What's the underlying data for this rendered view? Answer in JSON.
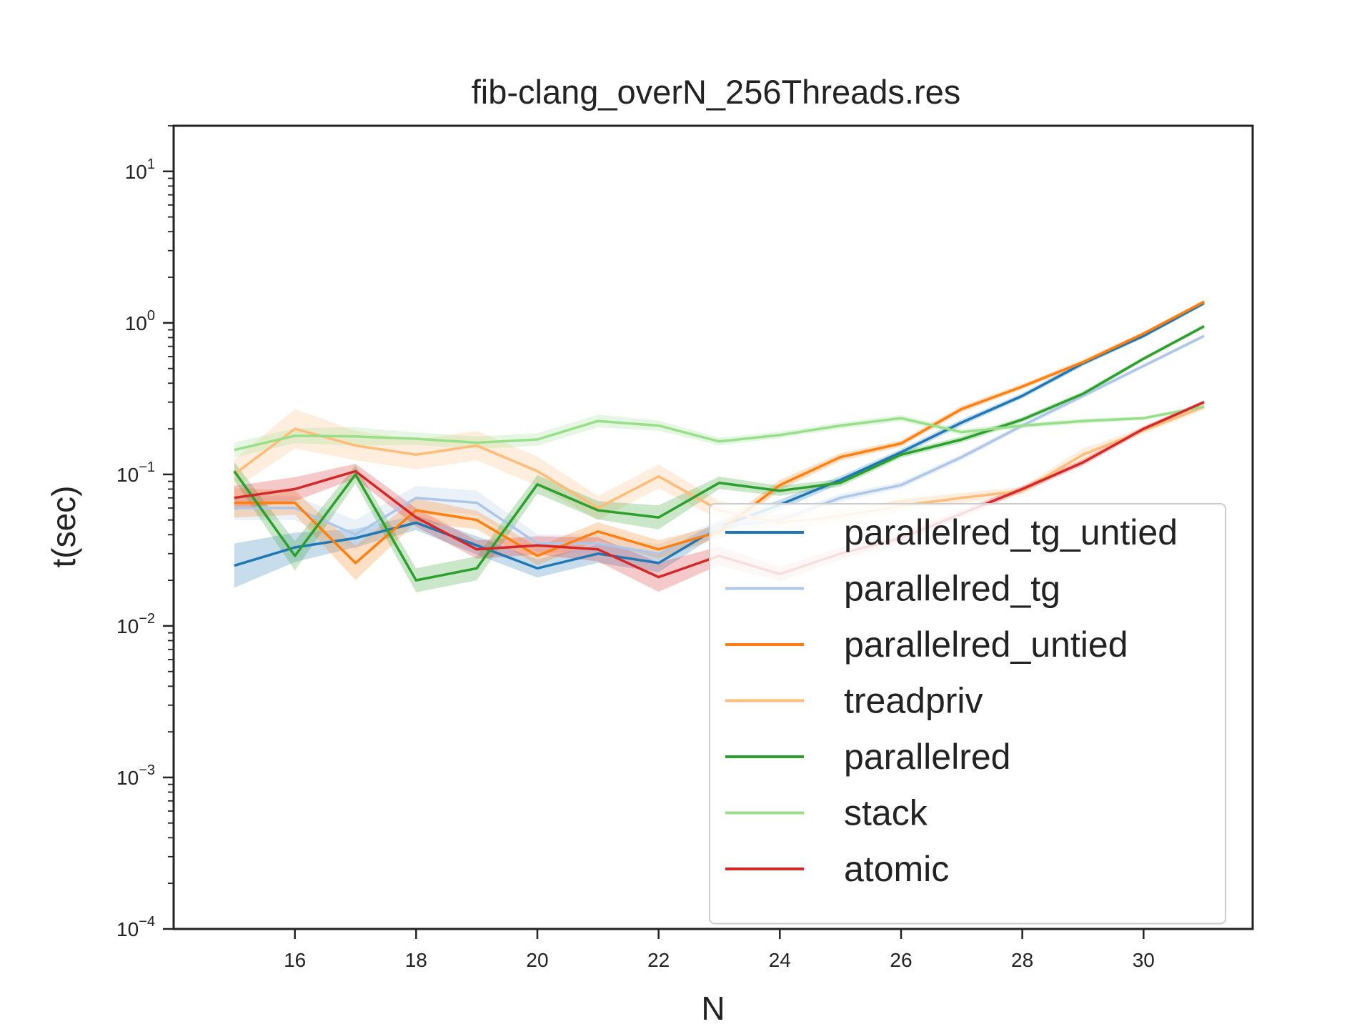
{
  "chart_data": {
    "type": "line",
    "title": "fib-clang_overN_256Threads.res",
    "xlabel": "N",
    "ylabel": "t(sec)",
    "yscale": "log",
    "xlim": [
      14,
      31.8
    ],
    "ylim": [
      0.0001,
      20
    ],
    "x_ticks": [
      16,
      18,
      20,
      22,
      24,
      26,
      28,
      30
    ],
    "y_ticks": [
      {
        "value": 0.0001,
        "base": "10",
        "exp": "−4"
      },
      {
        "value": 0.001,
        "base": "10",
        "exp": "−3"
      },
      {
        "value": 0.01,
        "base": "10",
        "exp": "−2"
      },
      {
        "value": 0.1,
        "base": "10",
        "exp": "−1"
      },
      {
        "value": 1,
        "base": "10",
        "exp": "0"
      },
      {
        "value": 10,
        "base": "10",
        "exp": "1"
      }
    ],
    "grid": false,
    "legend_position": "lower-right",
    "x": [
      15,
      16,
      17,
      18,
      19,
      20,
      21,
      22,
      23,
      24,
      25,
      26,
      27,
      28,
      29,
      30,
      31
    ],
    "series": [
      {
        "name": "parallelred_tg_untied",
        "color": "#1f77b4",
        "values": [
          0.025,
          0.033,
          0.038,
          0.048,
          0.034,
          0.024,
          0.03,
          0.026,
          0.045,
          0.063,
          0.092,
          0.14,
          0.22,
          0.33,
          0.54,
          0.82,
          1.35
        ],
        "spread": [
          0.4,
          0.25,
          0.15,
          0.12,
          0.15,
          0.15,
          0.15,
          0.15,
          0.1,
          0.08,
          0.06,
          0.05,
          0.05,
          0.04,
          0.04,
          0.03,
          0.03
        ]
      },
      {
        "name": "parallelred_tg",
        "color": "#aec7e8",
        "values": [
          0.06,
          0.06,
          0.04,
          0.07,
          0.065,
          0.035,
          0.035,
          0.03,
          0.045,
          0.05,
          0.07,
          0.085,
          0.13,
          0.21,
          0.33,
          0.52,
          0.82
        ],
        "spread": [
          0.2,
          0.2,
          0.25,
          0.2,
          0.2,
          0.15,
          0.15,
          0.15,
          0.1,
          0.08,
          0.06,
          0.05,
          0.05,
          0.04,
          0.04,
          0.03,
          0.03
        ]
      },
      {
        "name": "parallelred_untied",
        "color": "#ff7f0e",
        "values": [
          0.065,
          0.065,
          0.026,
          0.058,
          0.05,
          0.029,
          0.042,
          0.032,
          0.042,
          0.085,
          0.13,
          0.16,
          0.27,
          0.38,
          0.55,
          0.85,
          1.38
        ],
        "spread": [
          0.25,
          0.2,
          0.3,
          0.2,
          0.15,
          0.15,
          0.15,
          0.15,
          0.1,
          0.08,
          0.06,
          0.05,
          0.05,
          0.04,
          0.04,
          0.03,
          0.03
        ]
      },
      {
        "name": "treadpriv",
        "color": "#ffbb78",
        "values": [
          0.1,
          0.2,
          0.155,
          0.135,
          0.155,
          0.105,
          0.06,
          0.097,
          0.058,
          0.048,
          0.053,
          0.062,
          0.07,
          0.078,
          0.135,
          0.195,
          0.28
        ],
        "spread": [
          0.25,
          0.35,
          0.25,
          0.25,
          0.25,
          0.25,
          0.2,
          0.2,
          0.15,
          0.15,
          0.1,
          0.1,
          0.08,
          0.06,
          0.1,
          0.05,
          0.05
        ]
      },
      {
        "name": "parallelred",
        "color": "#2ca02c",
        "values": [
          0.105,
          0.029,
          0.1,
          0.02,
          0.024,
          0.086,
          0.058,
          0.052,
          0.088,
          0.078,
          0.088,
          0.135,
          0.17,
          0.23,
          0.34,
          0.58,
          0.95
        ],
        "spread": [
          0.15,
          0.25,
          0.15,
          0.2,
          0.2,
          0.15,
          0.15,
          0.2,
          0.1,
          0.08,
          0.06,
          0.05,
          0.05,
          0.04,
          0.04,
          0.03,
          0.03
        ]
      },
      {
        "name": "stack",
        "color": "#98df8a",
        "values": [
          0.145,
          0.18,
          0.178,
          0.172,
          0.162,
          0.17,
          0.225,
          0.21,
          0.165,
          0.182,
          0.21,
          0.235,
          0.19,
          0.21,
          0.225,
          0.235,
          0.28
        ],
        "spread": [
          0.12,
          0.12,
          0.15,
          0.1,
          0.1,
          0.1,
          0.1,
          0.08,
          0.06,
          0.05,
          0.05,
          0.05,
          0.05,
          0.04,
          0.04,
          0.03,
          0.03
        ]
      },
      {
        "name": "atomic",
        "color": "#d62728",
        "values": [
          0.07,
          0.08,
          0.105,
          0.052,
          0.032,
          0.034,
          0.032,
          0.021,
          0.029,
          0.022,
          0.03,
          0.038,
          0.055,
          0.08,
          0.12,
          0.2,
          0.3
        ],
        "spread": [
          0.2,
          0.2,
          0.12,
          0.15,
          0.15,
          0.15,
          0.2,
          0.25,
          0.15,
          0.12,
          0.1,
          0.08,
          0.06,
          0.05,
          0.05,
          0.04,
          0.03
        ]
      }
    ]
  }
}
